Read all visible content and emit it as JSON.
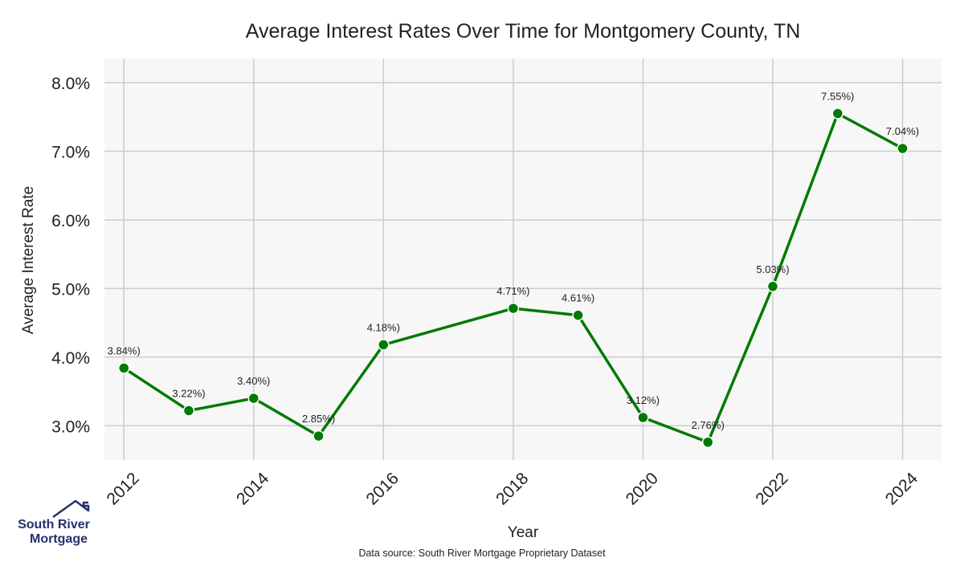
{
  "chart_data": {
    "type": "line",
    "title": "Average Interest Rates Over Time for Montgomery County, TN",
    "xlabel": "Year",
    "ylabel": "Average Interest Rate",
    "x": [
      2012,
      2013,
      2014,
      2015,
      2016,
      2018,
      2019,
      2020,
      2021,
      2022,
      2023,
      2024
    ],
    "values": [
      3.84,
      3.22,
      3.4,
      2.85,
      4.18,
      4.71,
      4.61,
      3.12,
      2.76,
      5.03,
      7.55,
      7.04
    ],
    "data_labels": [
      "3.84%)",
      "3.22%)",
      "3.40%)",
      "2.85%)",
      "4.18%)",
      "4.71%)",
      "4.61%)",
      "3.12%)",
      "2.76%)",
      "5.03%)",
      "7.55%)",
      "7.04%)"
    ],
    "xticks": [
      2012,
      2014,
      2016,
      2018,
      2020,
      2022,
      2024
    ],
    "xtick_labels": [
      "2012",
      "2014",
      "2016",
      "2018",
      "2020",
      "2022",
      "2024"
    ],
    "yticks": [
      3,
      4,
      5,
      6,
      7,
      8
    ],
    "ytick_labels": [
      "3.0%",
      "4.0%",
      "5.0%",
      "6.0%",
      "7.0%",
      "8.0%"
    ],
    "xlim": [
      2011.7,
      2024.6
    ],
    "ylim": [
      2.5,
      8.35
    ],
    "grid": true,
    "line_color": "#007a00",
    "plot_background": "#f7f7f7",
    "grid_color": "#cccccc"
  },
  "source_note": "Data source: South River Mortgage Proprietary Dataset",
  "logo": {
    "line1": "South River",
    "line2": "Mortgage",
    "color": "#25306b"
  }
}
